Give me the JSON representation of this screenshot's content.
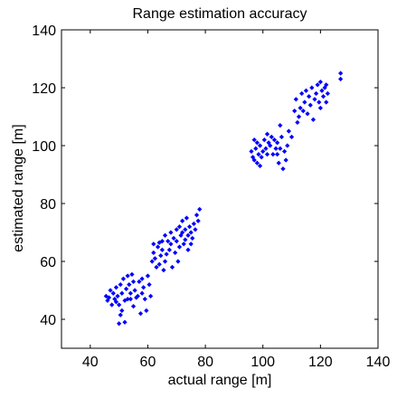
{
  "chart_data": {
    "type": "scatter",
    "title": "Range estimation accuracy",
    "xlabel": "actual range [m]",
    "ylabel": "estimated range [m]",
    "xlim": [
      30,
      140
    ],
    "ylim": [
      30,
      140
    ],
    "xticks": [
      "40",
      "60",
      "80",
      "100",
      "120",
      "140"
    ],
    "yticks": [
      "40",
      "60",
      "80",
      "100",
      "120",
      "140"
    ],
    "grid": false,
    "marker_color": "#0000ff",
    "series": [
      {
        "points": [
          [
            45.5,
            48
          ],
          [
            46,
            46.5
          ],
          [
            46.5,
            47.5
          ],
          [
            47,
            50
          ],
          [
            47.5,
            45
          ],
          [
            48,
            49
          ],
          [
            48.5,
            47
          ],
          [
            49,
            51
          ],
          [
            49,
            46
          ],
          [
            49.5,
            48
          ],
          [
            50,
            45
          ],
          [
            50,
            38.5
          ],
          [
            50.5,
            52
          ],
          [
            50.5,
            41.5
          ],
          [
            51,
            49
          ],
          [
            51,
            43
          ],
          [
            51.5,
            54
          ],
          [
            52,
            46.5
          ],
          [
            52,
            39
          ],
          [
            52.5,
            50.5
          ],
          [
            53,
            55
          ],
          [
            53,
            47
          ],
          [
            53.5,
            52
          ],
          [
            54,
            47
          ],
          [
            54,
            49
          ],
          [
            54.5,
            55.5
          ],
          [
            55,
            53
          ],
          [
            55,
            44.5
          ],
          [
            55.5,
            50
          ],
          [
            56,
            47.5
          ],
          [
            56.5,
            48
          ],
          [
            57,
            53
          ],
          [
            57.5,
            42
          ],
          [
            58,
            54
          ],
          [
            58,
            49
          ],
          [
            58.5,
            51
          ],
          [
            59,
            47
          ],
          [
            59.5,
            43
          ],
          [
            60,
            55
          ],
          [
            60.5,
            52
          ],
          [
            61,
            48
          ],
          [
            61.5,
            60
          ],
          [
            62,
            63
          ],
          [
            62,
            66
          ],
          [
            62.5,
            61
          ],
          [
            63,
            58
          ],
          [
            63.5,
            65
          ],
          [
            64,
            59
          ],
          [
            64,
            66.5
          ],
          [
            64.5,
            62
          ],
          [
            65,
            64
          ],
          [
            65,
            67
          ],
          [
            65.5,
            57
          ],
          [
            66,
            69
          ],
          [
            66,
            60
          ],
          [
            66.5,
            62.5
          ],
          [
            67,
            67
          ],
          [
            67.5,
            64
          ],
          [
            68,
            70
          ],
          [
            68,
            66
          ],
          [
            68.5,
            58
          ],
          [
            69,
            68
          ],
          [
            69.5,
            63
          ],
          [
            70,
            71
          ],
          [
            70,
            67
          ],
          [
            70.5,
            60
          ],
          [
            71,
            72
          ],
          [
            71,
            65
          ],
          [
            71.5,
            69
          ],
          [
            72,
            74
          ],
          [
            72,
            70
          ],
          [
            72.5,
            66
          ],
          [
            73,
            71
          ],
          [
            73,
            67.5
          ],
          [
            73.5,
            75
          ],
          [
            74,
            69
          ],
          [
            74,
            64
          ],
          [
            74.5,
            72
          ],
          [
            75,
            70
          ],
          [
            75,
            66
          ],
          [
            75.5,
            68
          ],
          [
            76,
            73
          ],
          [
            76.5,
            71
          ],
          [
            77,
            76
          ],
          [
            77.5,
            74
          ],
          [
            78,
            78
          ],
          [
            96,
            98
          ],
          [
            96.5,
            96
          ],
          [
            97,
            102
          ],
          [
            97,
            95
          ],
          [
            97.5,
            99
          ],
          [
            98,
            94
          ],
          [
            98,
            101
          ],
          [
            98.5,
            97
          ],
          [
            99,
            100
          ],
          [
            99,
            93
          ],
          [
            99.5,
            96
          ],
          [
            100,
            98
          ],
          [
            100.5,
            102
          ],
          [
            101,
            99
          ],
          [
            101.5,
            104
          ],
          [
            101.5,
            97
          ],
          [
            102,
            101
          ],
          [
            102.5,
            100
          ],
          [
            103,
            103
          ],
          [
            103.5,
            97
          ],
          [
            104,
            102
          ],
          [
            104.5,
            99
          ],
          [
            105,
            97
          ],
          [
            105,
            101
          ],
          [
            105.5,
            94
          ],
          [
            106,
            107
          ],
          [
            106,
            99
          ],
          [
            106.5,
            103
          ],
          [
            107,
            92
          ],
          [
            107.5,
            98
          ],
          [
            108,
            95
          ],
          [
            108.5,
            100
          ],
          [
            109,
            105
          ],
          [
            110,
            103
          ],
          [
            111,
            112
          ],
          [
            111.5,
            116
          ],
          [
            112,
            108
          ],
          [
            112.5,
            110
          ],
          [
            113,
            113
          ],
          [
            113.5,
            118
          ],
          [
            114,
            112
          ],
          [
            114.5,
            115
          ],
          [
            115,
            119
          ],
          [
            115.5,
            111
          ],
          [
            116,
            117
          ],
          [
            116.5,
            114
          ],
          [
            117,
            120
          ],
          [
            117.5,
            109
          ],
          [
            118,
            116
          ],
          [
            118.5,
            118
          ],
          [
            119,
            121
          ],
          [
            119.5,
            115
          ],
          [
            120,
            113
          ],
          [
            120,
            122
          ],
          [
            120.5,
            119
          ],
          [
            121,
            117
          ],
          [
            121.5,
            120
          ],
          [
            122,
            121
          ],
          [
            122,
            115
          ],
          [
            122.5,
            118
          ],
          [
            127,
            125
          ],
          [
            127,
            123
          ]
        ]
      }
    ]
  }
}
